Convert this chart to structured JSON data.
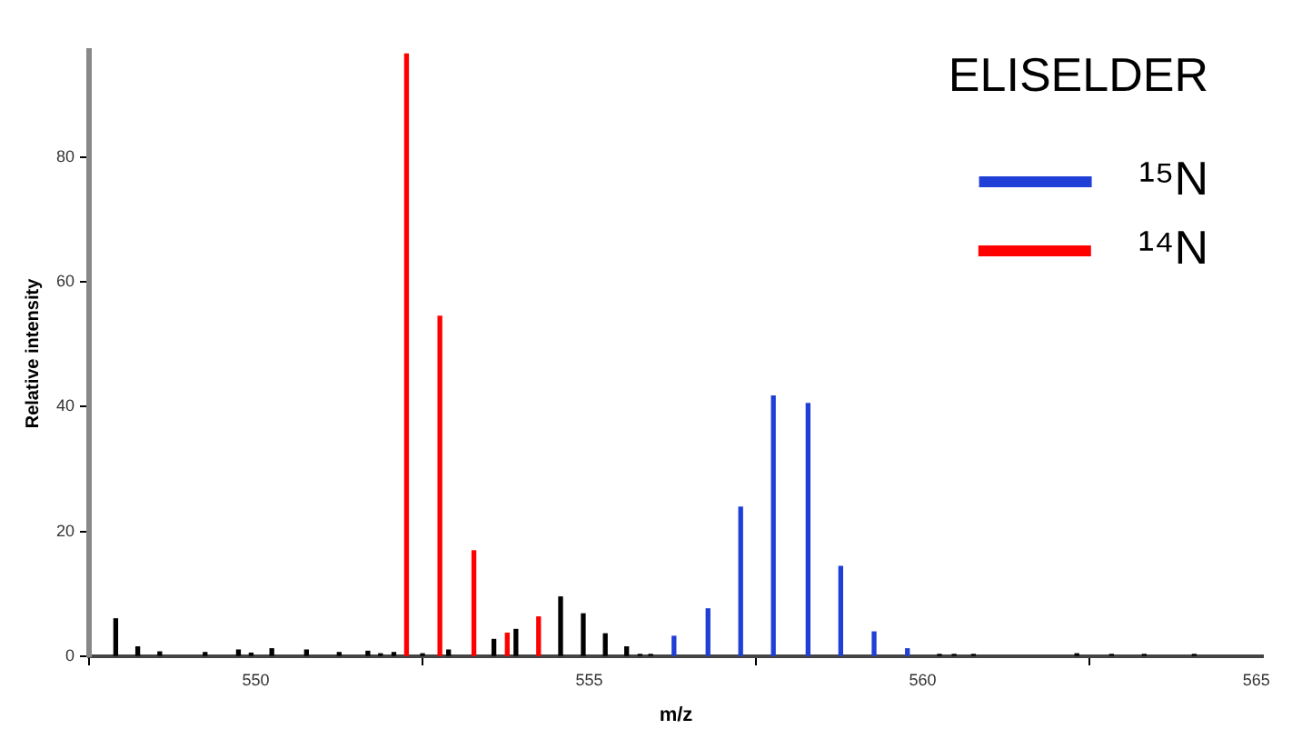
{
  "chart_data": {
    "type": "bar",
    "title": "ELISELDER",
    "xlabel": "m/z",
    "ylabel": "Relative intensity",
    "xlim": [
      547.5,
      565.1
    ],
    "xticks": [
      550,
      555,
      560,
      565
    ],
    "ylim": [
      0,
      97
    ],
    "yticks": [
      0,
      20,
      40,
      60,
      80
    ],
    "grid": false,
    "legend": "top right",
    "series": [
      {
        "color": "#000000",
        "x": [
          547.9,
          548.23,
          548.56,
          549.24,
          549.74,
          549.93,
          550.24,
          550.76,
          551.25,
          551.68,
          551.87,
          552.07,
          552.5,
          552.89,
          553.57,
          553.9,
          554.57,
          554.91,
          555.24,
          555.56,
          555.76,
          555.92,
          560.25,
          560.47,
          560.76,
          562.31,
          562.83,
          563.32,
          564.07
        ],
        "values": [
          6,
          1.5,
          0.7,
          0.6,
          1,
          0.5,
          1.2,
          1,
          0.6,
          0.8,
          0.4,
          0.6,
          0.4,
          1,
          2.7,
          4.3,
          9.5,
          6.8,
          3.6,
          1.5,
          0.3,
          0.3,
          0.3,
          0.3,
          0.3,
          0.4,
          0.3,
          0.3,
          0.3
        ]
      },
      {
        "name": "¹⁵N",
        "color": "#1f3fd6",
        "x": [
          556.27,
          556.78,
          557.27,
          557.76,
          558.28,
          558.77,
          559.27,
          559.77
        ],
        "values": [
          3.2,
          7.6,
          23.9,
          41.7,
          40.5,
          14.4,
          3.9,
          1.2
        ]
      },
      {
        "name": "¹⁴N",
        "color": "#ff0000",
        "x": [
          552.26,
          552.76,
          553.27,
          553.77,
          554.24
        ],
        "values": [
          96.5,
          54.5,
          16.9,
          3.7,
          6.3
        ]
      }
    ]
  }
}
